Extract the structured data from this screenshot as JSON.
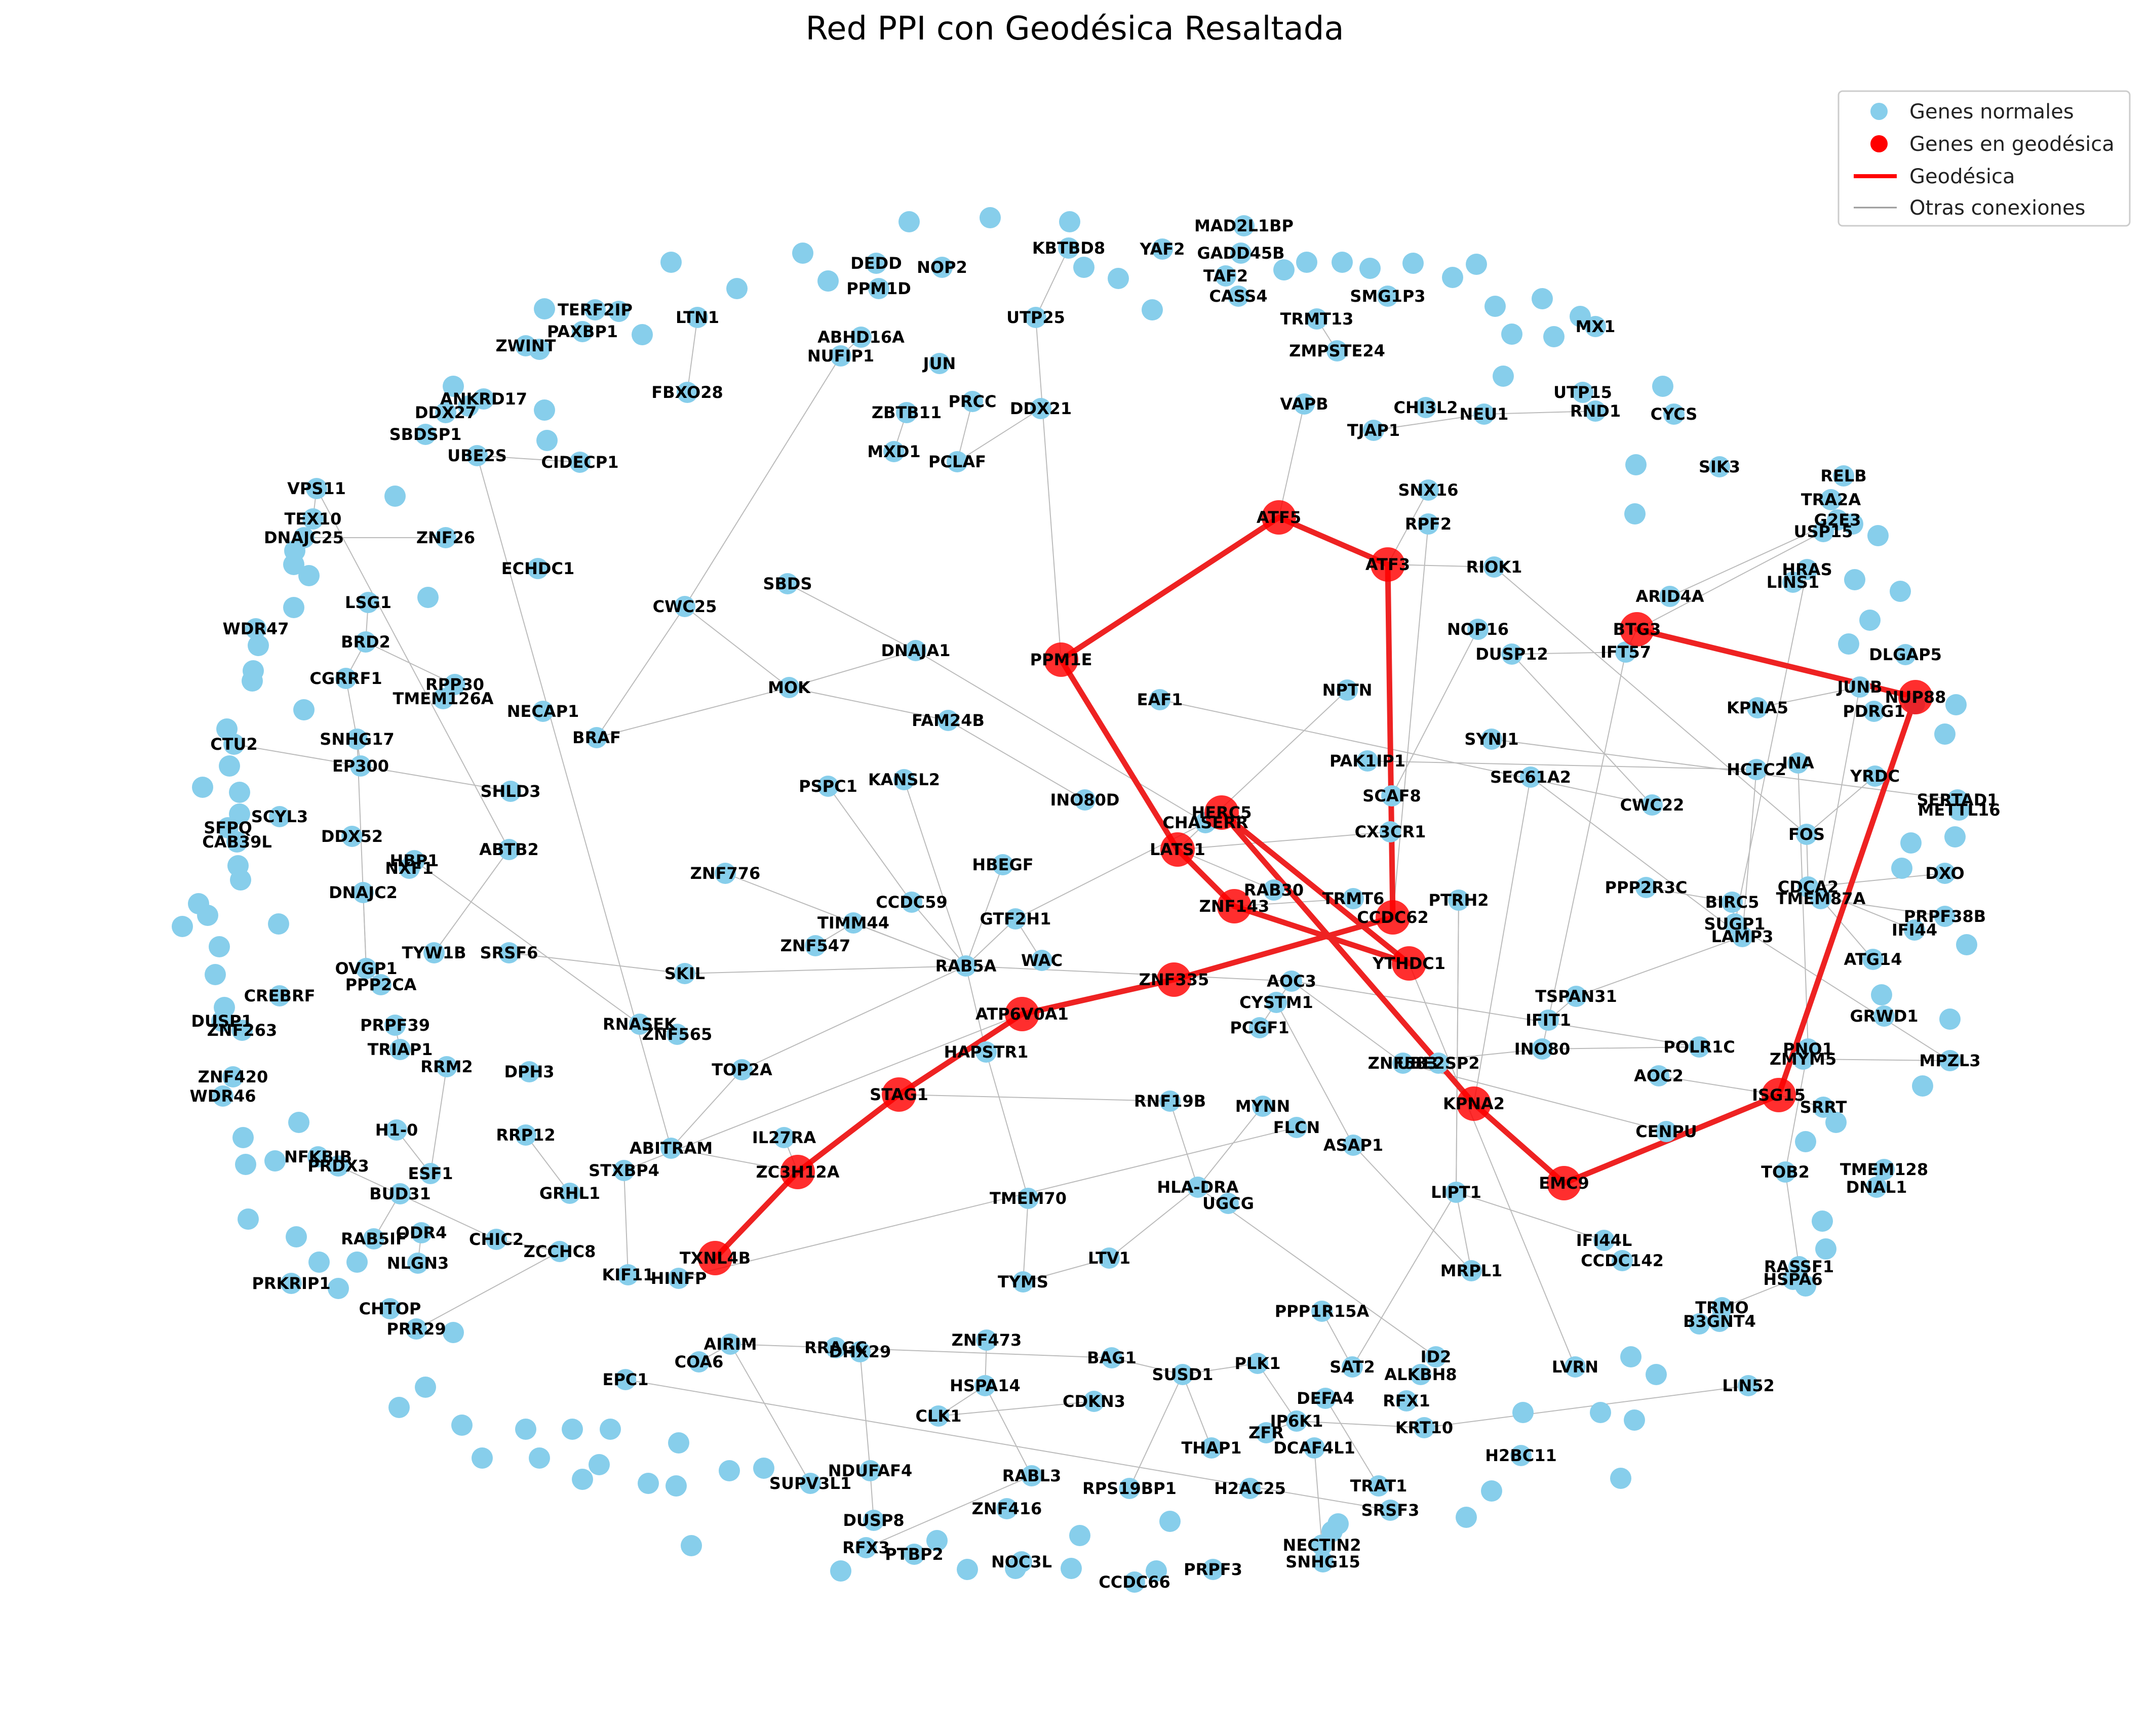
{
  "title": "Red PPI con Geodésica Resaltada",
  "colors": {
    "normal": "#87CEEB",
    "path": "#FF0000",
    "path_edge": "#EE2222",
    "other_edge": "#BBBBBB"
  },
  "legend": {
    "placement": "top-right",
    "items": [
      {
        "label": "Genes normales",
        "marker": "dot",
        "color": "#87CEEB"
      },
      {
        "label": "Genes en geodésica",
        "marker": "dot",
        "color": "#FF0000"
      },
      {
        "label": "Geodésica",
        "marker": "line",
        "color": "#FF0000"
      },
      {
        "label": "Otras conexiones",
        "marker": "thin-line",
        "color": "#999999"
      }
    ]
  },
  "geodesic": [
    "TXNL4B",
    "ZC3H12A",
    "STAG1",
    "ATP6V0A1",
    "ZNF335",
    "YTHDC1",
    "ZNF143",
    "LATS1",
    "PPM1E",
    "ATF5",
    "ATF3",
    "CCDC62",
    "HERC5",
    "KPNA2",
    "EMC9",
    "ISG15",
    "NUP88",
    "BTG3"
  ],
  "genes": [
    "MAD2L1BP",
    "KBTBD8",
    "DEDD",
    "NOP2",
    "YAF2",
    "GADD45B",
    "TAF2",
    "CASS4",
    "PPM1D",
    "TERF2IP",
    "LTN1",
    "PAXBP1",
    "ZWINT",
    "ABHD16A",
    "NUFIP1",
    "JUN",
    "UTP25",
    "TRMT13",
    "ZMPSTE24",
    "SMG1P3",
    "MX1",
    "ANKRD17",
    "DDX27",
    "SBDSP1",
    "UBE2S",
    "CIDECP1",
    "FBXO28",
    "ZBTB11",
    "MXD1",
    "PRCC",
    "PCLAF",
    "DDX21",
    "VAPB",
    "TJAP1",
    "CHI3L2",
    "NEU1",
    "UTP15",
    "RND1",
    "CYCS",
    "SIK3",
    "RELB",
    "TRA2A",
    "G2E3",
    "USP15",
    "VPS11",
    "TEX10",
    "DNAJC25",
    "ZNF26",
    "ECHDC1",
    "LSG1",
    "BRD2",
    "WDR47",
    "CWC25",
    "SBDS",
    "DNAJA1",
    "MOK",
    "FAM24B",
    "RPP30",
    "TMEM126A",
    "NECAP1",
    "BRAF",
    "CGRRF1",
    "SNHG17",
    "EP300",
    "CTU2",
    "SHLD3",
    "SCYL3",
    "SFPQ",
    "CAB39L",
    "DDX52",
    "HBP1",
    "NXF1",
    "ABTB2",
    "DNAJC2",
    "OVGP1",
    "TYW1B",
    "SRSF6",
    "PPP2CA",
    "CREBRF",
    "DUSP1",
    "ZNF263",
    "ZNF420",
    "WDR46",
    "PRPF39",
    "TRIAP1",
    "RRM2",
    "DPH3",
    "H1-0",
    "NFKBIB",
    "PRDX3",
    "ESF1",
    "BUD31",
    "RRP12",
    "ODR4",
    "RAB5IF",
    "NLGN3",
    "CHIC2",
    "ZCCHC8",
    "PRKRIP1",
    "CHTOP",
    "PRR29",
    "SNX16",
    "RPF2",
    "RIOK1",
    "ARID4A",
    "HRAS",
    "LINS1",
    "NOP16",
    "IFT57",
    "DUSP12",
    "NPTN",
    "EAF1",
    "KPNA5",
    "JUNB",
    "PDRG1",
    "DLGAP5",
    "SYNJ1",
    "PAK1IP1",
    "SEC61A2",
    "HCFC2",
    "INA",
    "YRDC",
    "SERTAD1",
    "METTL16",
    "SCAF8",
    "CWC22",
    "CX3CR1",
    "INO80D",
    "CHASERR",
    "KANSL2",
    "PSPC1",
    "ZNF776",
    "HBEGF",
    "CCDC59",
    "TIMM44",
    "ZNF547",
    "GTF2H1",
    "RAB5A",
    "WAC",
    "SKIL",
    "RNASEK",
    "ZNF565",
    "TOP2A",
    "HAPSTR1",
    "IL27RA",
    "ABITRAM",
    "STXBP4",
    "GRHL1",
    "KIF11",
    "HINFP",
    "RAB30",
    "TRMT6",
    "PTRH2",
    "FOS",
    "PPP2R3C",
    "BIRC5",
    "SUGP1",
    "LAMP3",
    "CDCA2",
    "TMEM87A",
    "DXO",
    "IFI44",
    "PRPF38B",
    "ATG14",
    "GRWD1",
    "AOC3",
    "CYSTM1",
    "PCGF1",
    "TSPAN31",
    "IFIT1",
    "POLR1C",
    "PNO1",
    "ZMYM5",
    "MPZL3",
    "INO80",
    "AOC2",
    "SRRT",
    "ZNF583",
    "UBE2SP2",
    "CENPU",
    "TOB2",
    "TMEM128",
    "DNAL1",
    "RNF19B",
    "MYNN",
    "FLCN",
    "ASAP1",
    "HLA-DRA",
    "UGCG",
    "TMEM70",
    "LIPT1",
    "IFI44L",
    "CCDC142",
    "RASSF1",
    "HSPA6",
    "TRMO",
    "B3GNT4",
    "LTV1",
    "TYMS",
    "MRPL1",
    "ZNF473",
    "AIRIM",
    "RRAGC",
    "DHX29",
    "COA6",
    "EPC1",
    "PPP1R15A",
    "ID2",
    "BAG1",
    "PLK1",
    "SAT2",
    "ALKBH8",
    "LVRN",
    "LIN52",
    "HSPA14",
    "SUSD1",
    "CLK1",
    "CDKN3",
    "DEFA4",
    "RFX1",
    "IP6K1",
    "ZFR",
    "KRT10",
    "H2BC11",
    "DCAF4L1",
    "THAP1",
    "NDUFAF4",
    "SUPV3L1",
    "RABL3",
    "RPS19BP1",
    "H2AC25",
    "TRAT1",
    "SRSF3",
    "DUSP8",
    "ZNF416",
    "NECTIN2",
    "RFX3",
    "PTBP2",
    "NOC3L",
    "SNHG15",
    "PRPF3",
    "CCDC66"
  ]
}
